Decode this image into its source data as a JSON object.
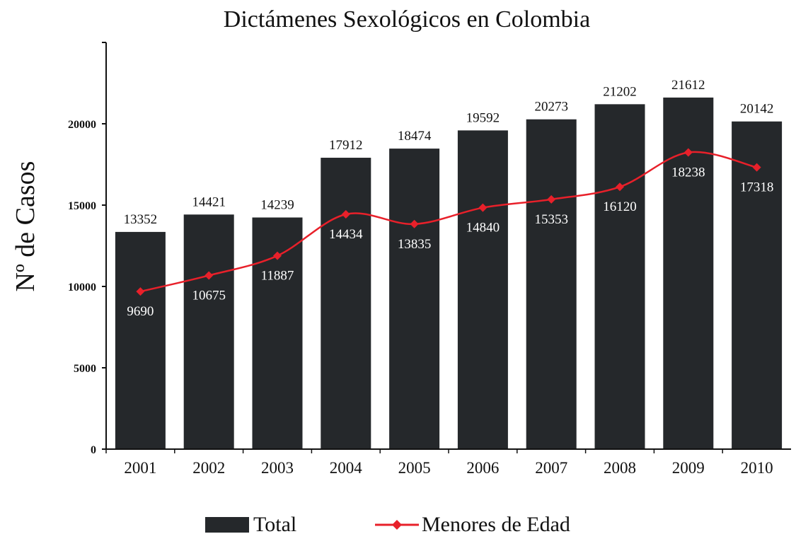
{
  "colors": {
    "bar": "#25282b",
    "line": "#e8202a",
    "axis": "#111111",
    "text": "#111111",
    "line_label": "#ffffff"
  },
  "chart_data": {
    "type": "bar",
    "title": "Dictámenes Sexológicos en Colombia",
    "xlabel": "",
    "ylabel": "Nº de Casos",
    "ylim": [
      0,
      25000
    ],
    "yticks": [
      0,
      5000,
      10000,
      15000,
      20000
    ],
    "categories": [
      "2001",
      "2002",
      "2003",
      "2004",
      "2005",
      "2006",
      "2007",
      "2008",
      "2009",
      "2010"
    ],
    "series": [
      {
        "name": "Total",
        "type": "bar",
        "values": [
          13352,
          14421,
          14239,
          17912,
          18474,
          19592,
          20273,
          21202,
          21612,
          20142
        ]
      },
      {
        "name": "Menores de Edad",
        "type": "line",
        "marker": "diamond",
        "values": [
          9690,
          10675,
          11887,
          14434,
          13835,
          14840,
          15353,
          16120,
          18238,
          17318
        ]
      }
    ],
    "grid": false,
    "legend": "bottom"
  }
}
